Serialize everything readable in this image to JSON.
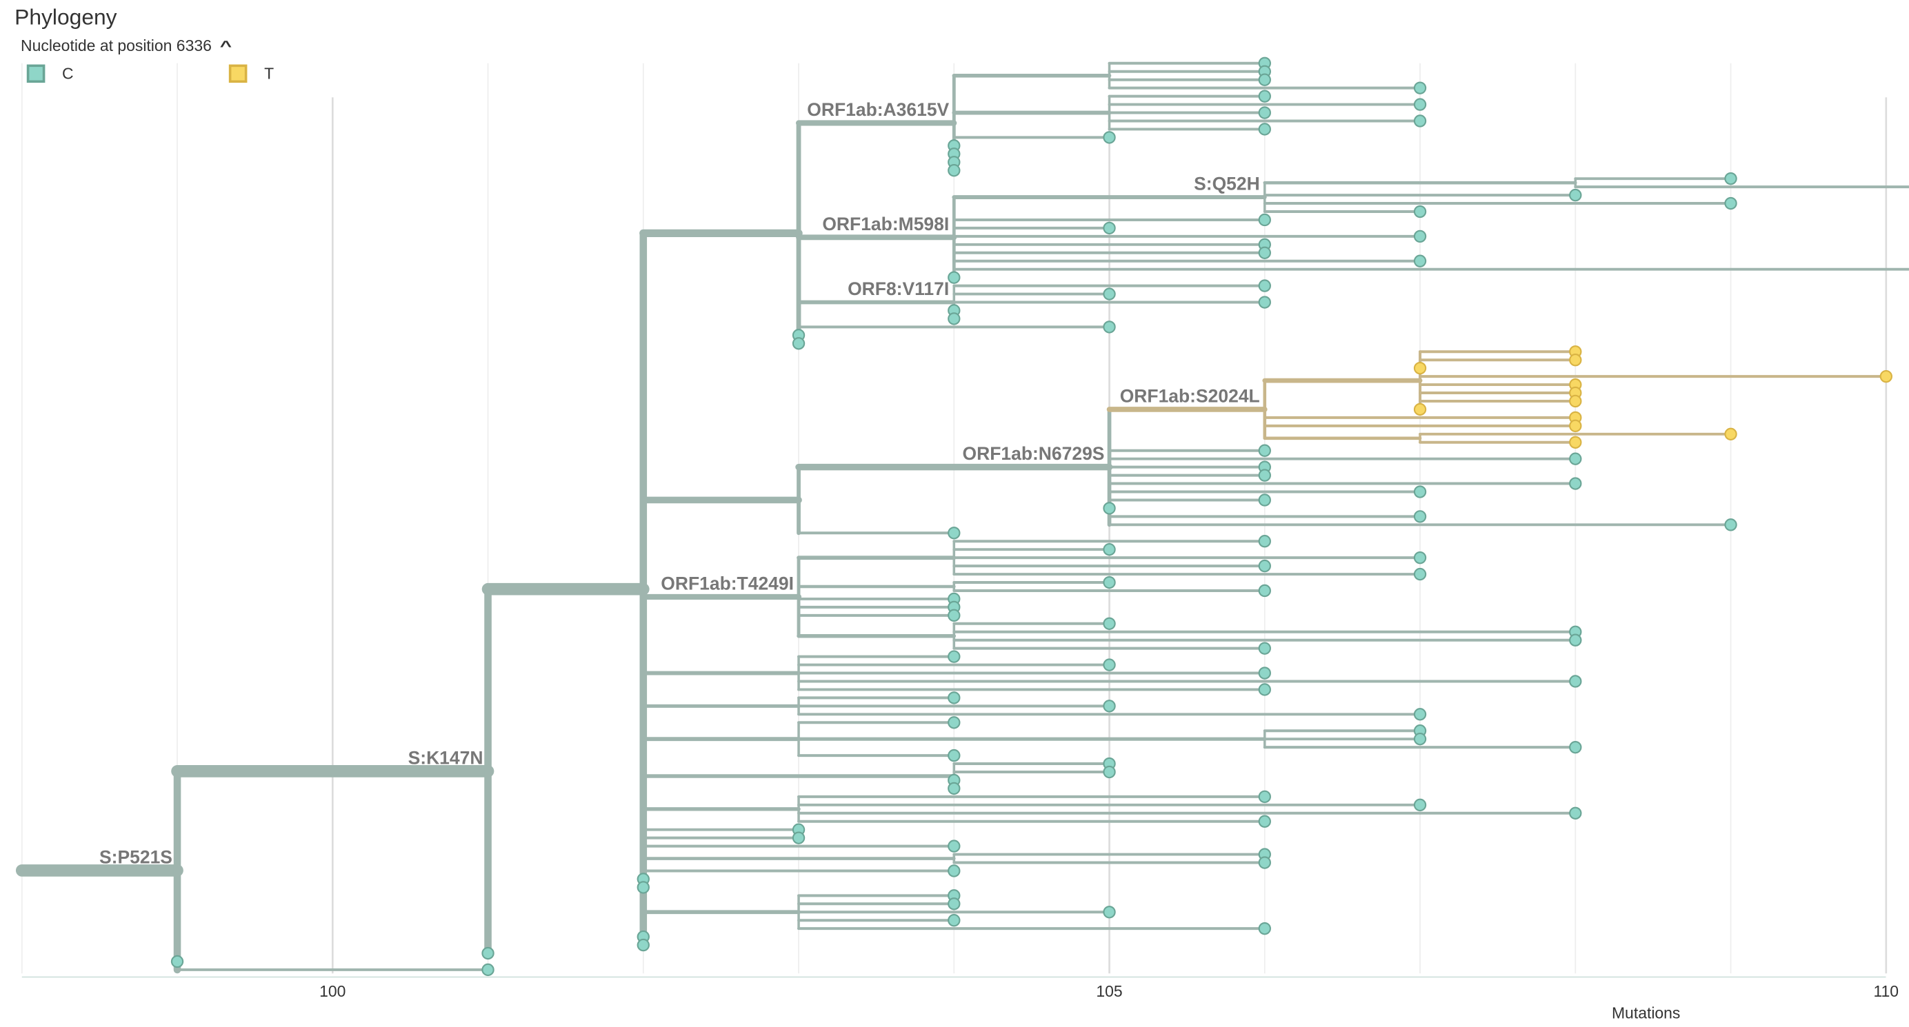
{
  "header": {
    "title": "Phylogeny",
    "legend_title": "Nucleotide at position 6336",
    "legend": [
      {
        "label": "C",
        "fill": "#8fd6c8",
        "stroke": "#6aa596"
      },
      {
        "label": "T",
        "fill": "#f8d863",
        "stroke": "#d9b344"
      }
    ]
  },
  "colors": {
    "C": {
      "branch": "#9fb5ae",
      "fill": "#8fd6c8",
      "stroke": "#6aa596"
    },
    "T": {
      "branch": "#c8b68a",
      "fill": "#f8d863",
      "stroke": "#d9b344"
    }
  },
  "chart_data": {
    "type": "phylogeny",
    "xlabel": "Mutations",
    "xlim": [
      98,
      110.2
    ],
    "x_ticks": [
      "100",
      "105",
      "110"
    ],
    "x_tick_values": [
      100,
      105,
      110
    ],
    "grid": true,
    "tree": {
      "m": 98,
      "k": [
        {
          "m": 99,
          "l": "S:P521S",
          "k": [
            {
              "m": 101,
              "l": "S:K147N",
              "k": [
                {
                  "m": 102,
                  "k": [
                    {
                      "m": 103,
                      "k": [
                        {
                          "m": 104,
                          "l": "ORF1ab:A3615V",
                          "k": [
                            {
                              "m": 105,
                              "k": [
                                106,
                                106,
                                106,
                                107
                              ]
                            },
                            {
                              "m": 105,
                              "k": [
                                106,
                                107,
                                106,
                                107,
                                106
                              ]
                            },
                            105,
                            104,
                            104,
                            104,
                            104
                          ]
                        },
                        {
                          "m": 104,
                          "l": "ORF1ab:M598I",
                          "k": [
                            {
                              "m": 106,
                              "l": "S:Q52H",
                              "k": [
                                {
                                  "m": 108,
                                  "k": [
                                    109,
                                    110.3
                                  ]
                                },
                                108,
                                109,
                                107
                              ]
                            },
                            106,
                            105,
                            107,
                            106,
                            106,
                            107,
                            110.3,
                            104
                          ]
                        },
                        {
                          "m": 104,
                          "l": "ORF8:V117I",
                          "k": [
                            106,
                            105,
                            106,
                            104,
                            104
                          ]
                        },
                        105,
                        103,
                        103
                      ]
                    },
                    {
                      "m": 103,
                      "k": [
                        {
                          "m": 105,
                          "l": "ORF1ab:N6729S",
                          "k": [
                            {
                              "m": 106,
                              "c": "T",
                              "l": "ORF1ab:S2024L",
                              "k": [
                                {
                                  "m": 107,
                                  "k": [
                                    108,
                                    108,
                                    107,
                                    110,
                                    108,
                                    108,
                                    108,
                                    107
                                  ]
                                },
                                108,
                                108,
                                {
                                  "m": 107,
                                  "k": [
                                    109,
                                    108
                                  ]
                                }
                              ]
                            },
                            106,
                            108,
                            106,
                            106,
                            108,
                            107,
                            106,
                            105,
                            107,
                            109
                          ]
                        },
                        104
                      ]
                    },
                    {
                      "m": 103,
                      "l": "ORF1ab:T4249I",
                      "k": [
                        {
                          "m": 104,
                          "k": [
                            106,
                            105,
                            107,
                            106,
                            107
                          ]
                        },
                        {
                          "m": 104,
                          "k": [
                            105,
                            106
                          ]
                        },
                        104,
                        104,
                        104,
                        {
                          "m": 104,
                          "k": [
                            105,
                            108,
                            108,
                            106
                          ]
                        }
                      ]
                    },
                    {
                      "m": 103,
                      "k": [
                        104,
                        105,
                        106,
                        {
                          "m": 107,
                          "k": [
                            108
                          ]
                        },
                        106
                      ]
                    },
                    {
                      "m": 103,
                      "k": [
                        104,
                        105,
                        107
                      ]
                    },
                    {
                      "m": 103,
                      "k": [
                        104,
                        {
                          "m": 106,
                          "k": [
                            107,
                            107,
                            108
                          ]
                        },
                        104
                      ]
                    },
                    {
                      "m": 104,
                      "k": [
                        105,
                        105,
                        104,
                        104
                      ]
                    },
                    {
                      "m": 103,
                      "k": [
                        106,
                        107,
                        {
                          "m": 107,
                          "k": [
                            108
                          ]
                        },
                        106
                      ]
                    },
                    103,
                    103,
                    104,
                    {
                      "m": 104,
                      "k": [
                        106,
                        106
                      ]
                    },
                    104,
                    102,
                    102,
                    {
                      "m": 103,
                      "k": [
                        104,
                        104,
                        105,
                        104,
                        106
                      ]
                    },
                    102,
                    102
                  ]
                },
                101
              ]
            },
            99,
            101
          ]
        }
      ]
    }
  }
}
